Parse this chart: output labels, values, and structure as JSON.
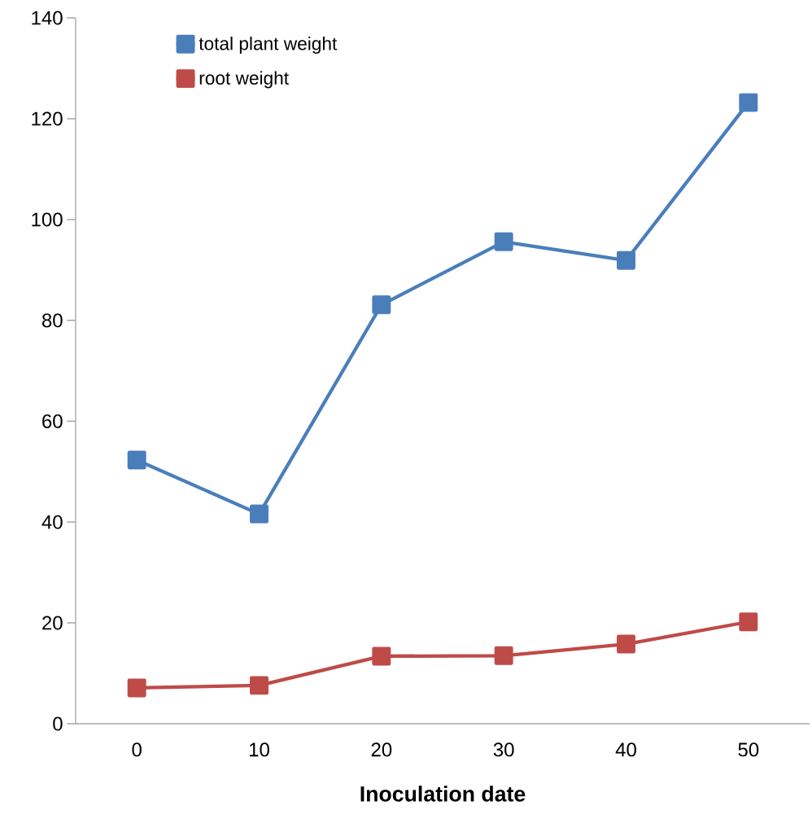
{
  "chart_data": {
    "type": "line",
    "xlabel": "Inoculation date",
    "categories": [
      "0",
      "10",
      "20",
      "30",
      "40",
      "50"
    ],
    "series": [
      {
        "name": "total plant weight",
        "color": "#4a7ebb",
        "values": [
          52.3,
          41.6,
          83.1,
          95.6,
          91.9,
          123.2
        ]
      },
      {
        "name": "root weight",
        "color": "#be4b48",
        "values": [
          7.1,
          7.6,
          13.4,
          13.5,
          15.8,
          20.2
        ]
      }
    ],
    "ylim": [
      0,
      140
    ],
    "yticks": [
      0,
      20,
      40,
      60,
      80,
      100,
      120,
      140
    ],
    "grid": false,
    "legend": "top left",
    "marker": "square",
    "line_style": "solid"
  }
}
